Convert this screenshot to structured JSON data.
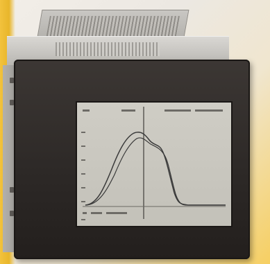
{
  "scene": {
    "subject": "panel-mount-instrument-display",
    "colors": {
      "background": "#efebe4",
      "brand_yellow": "#f2c23d",
      "bezel": "#2f2a28",
      "housing": "#b9b7b2",
      "screen": "#c9c7bf",
      "trace": "#3a3a3a"
    },
    "icons": [
      "vent-grille-icon",
      "mounting-screw-icon"
    ]
  }
}
